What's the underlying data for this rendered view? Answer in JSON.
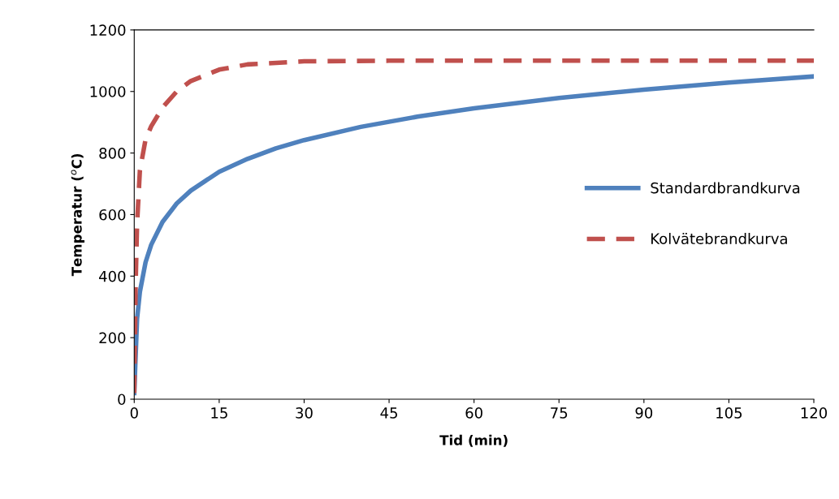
{
  "chart_data": {
    "type": "line",
    "xlabel": "Tid (min)",
    "ylabel": "Temperatur ($^{o}$C)",
    "xlim": [
      0,
      120
    ],
    "xticks": [
      0,
      15,
      30,
      45,
      60,
      75,
      90,
      105,
      120
    ],
    "ylim": [
      0,
      1200
    ],
    "yticks": [
      0,
      200,
      400,
      600,
      800,
      1000,
      1200
    ],
    "legend": "center right",
    "marker": "none",
    "series": [
      {
        "name": "Standardbrandkurva",
        "color": "#4f81bd",
        "line_style": "solid",
        "x": [
          0,
          0.5,
          1,
          2,
          3,
          5,
          7.5,
          10,
          15,
          20,
          25,
          30,
          40,
          50,
          60,
          75,
          90,
          105,
          120
        ],
        "values": [
          20,
          261,
          349,
          445,
          502,
          576,
          636,
          678,
          739,
          781,
          815,
          842,
          885,
          918,
          945,
          979,
          1006,
          1029,
          1049
        ]
      },
      {
        "name": "Kolvätebrandkurva",
        "color": "#c0504d",
        "line_style": "dashed",
        "x": [
          0,
          0.25,
          0.5,
          1,
          2,
          3,
          5,
          7.5,
          10,
          15,
          20,
          30,
          45,
          60,
          75,
          90,
          105,
          120
        ],
        "values": [
          20,
          373,
          569,
          744,
          844,
          887,
          948,
          1000,
          1034,
          1071,
          1088,
          1098,
          1100,
          1100,
          1100,
          1100,
          1100,
          1100
        ]
      }
    ]
  }
}
